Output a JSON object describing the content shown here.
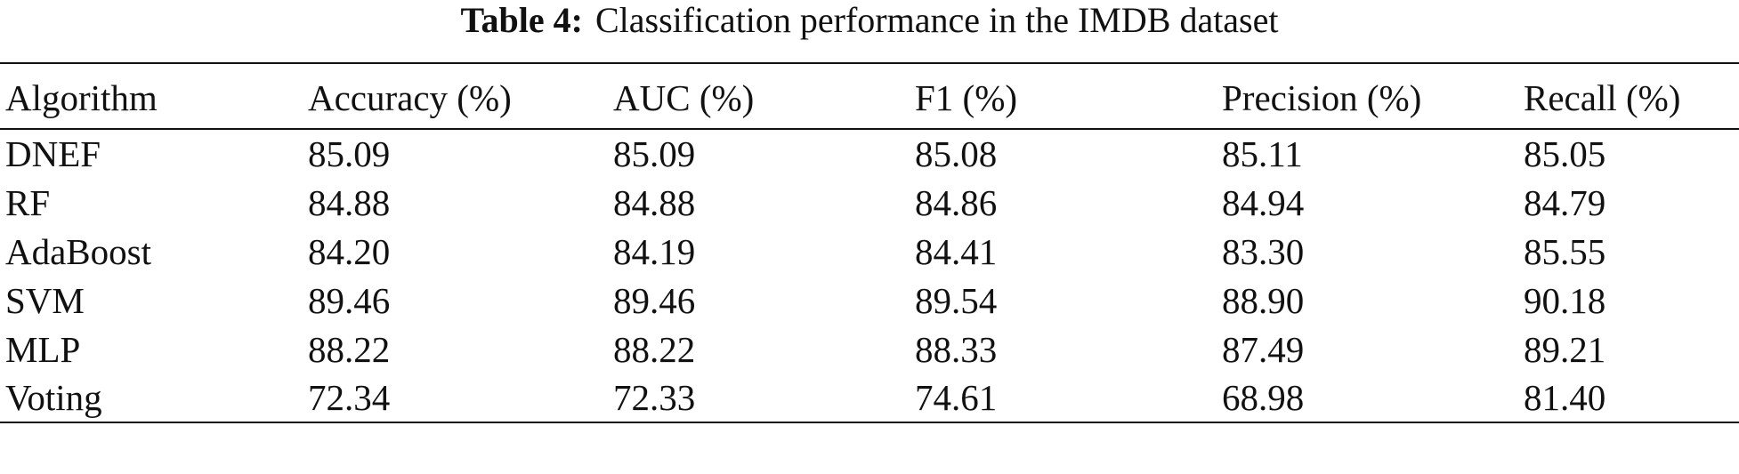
{
  "caption": {
    "label": "Table 4:",
    "text": "Classification performance in the IMDB dataset"
  },
  "table": {
    "columns": [
      "Algorithm",
      "Accuracy (%)",
      "AUC (%)",
      "F1 (%)",
      "Precision (%)",
      "Recall (%)"
    ],
    "rows": [
      [
        "DNEF",
        "85.09",
        "85.09",
        "85.08",
        "85.11",
        "85.05"
      ],
      [
        "RF",
        "84.88",
        "84.88",
        "84.86",
        "84.94",
        "84.79"
      ],
      [
        "AdaBoost",
        "84.20",
        "84.19",
        "84.41",
        "83.30",
        "85.55"
      ],
      [
        "SVM",
        "89.46",
        "89.46",
        "89.54",
        "88.90",
        "90.18"
      ],
      [
        "MLP",
        "88.22",
        "88.22",
        "88.33",
        "87.49",
        "89.21"
      ],
      [
        "Voting",
        "72.34",
        "72.33",
        "74.61",
        "68.98",
        "81.40"
      ]
    ]
  }
}
